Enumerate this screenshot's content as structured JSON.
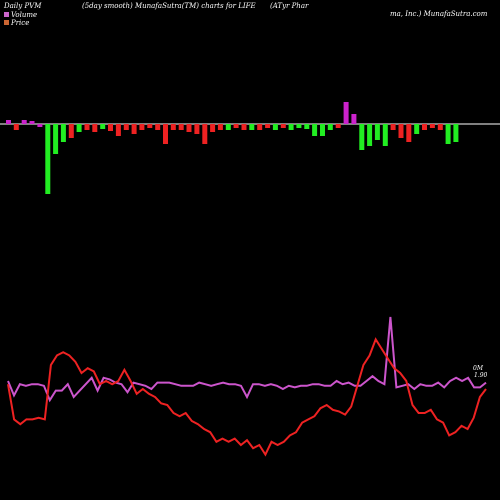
{
  "header": {
    "left": "Daily PVM",
    "center": "(5day smooth) MunafaSutra(TM) charts for LIFE",
    "right": "(ATyr Phar",
    "right2": "ma, Inc.) MunafaSutra.com"
  },
  "legend": [
    {
      "label": "Volume",
      "color": "#cc66cc"
    },
    {
      "label": "Price",
      "color": "#cc6633"
    }
  ],
  "labels": {
    "volume_end": "0M",
    "price_end": "1.90"
  },
  "colors": {
    "background": "#000000",
    "baseline": "#ffffff",
    "up": "#22ee22",
    "down": "#ee2222",
    "magenta": "#cc22cc",
    "volume_line": "#cc55cc",
    "price_line": "#ee2222"
  },
  "chart_data": {
    "type": "bar",
    "note_units": "volume bars are relative (0 = baseline, positive above, negative below)",
    "bars": [
      {
        "v": 4,
        "c": "magenta"
      },
      {
        "v": -6,
        "c": "down"
      },
      {
        "v": 4,
        "c": "magenta"
      },
      {
        "v": 3,
        "c": "magenta"
      },
      {
        "v": -3,
        "c": "magenta"
      },
      {
        "v": -70,
        "c": "up"
      },
      {
        "v": -30,
        "c": "up"
      },
      {
        "v": -18,
        "c": "up"
      },
      {
        "v": -14,
        "c": "down"
      },
      {
        "v": -8,
        "c": "up"
      },
      {
        "v": -6,
        "c": "down"
      },
      {
        "v": -8,
        "c": "down"
      },
      {
        "v": -5,
        "c": "up"
      },
      {
        "v": -7,
        "c": "down"
      },
      {
        "v": -12,
        "c": "down"
      },
      {
        "v": -6,
        "c": "down"
      },
      {
        "v": -10,
        "c": "down"
      },
      {
        "v": -6,
        "c": "down"
      },
      {
        "v": -4,
        "c": "down"
      },
      {
        "v": -6,
        "c": "down"
      },
      {
        "v": -20,
        "c": "down"
      },
      {
        "v": -6,
        "c": "down"
      },
      {
        "v": -6,
        "c": "down"
      },
      {
        "v": -8,
        "c": "down"
      },
      {
        "v": -10,
        "c": "down"
      },
      {
        "v": -20,
        "c": "down"
      },
      {
        "v": -8,
        "c": "down"
      },
      {
        "v": -6,
        "c": "down"
      },
      {
        "v": -6,
        "c": "up"
      },
      {
        "v": -4,
        "c": "down"
      },
      {
        "v": -6,
        "c": "down"
      },
      {
        "v": -6,
        "c": "up"
      },
      {
        "v": -6,
        "c": "down"
      },
      {
        "v": -4,
        "c": "down"
      },
      {
        "v": -6,
        "c": "up"
      },
      {
        "v": -4,
        "c": "down"
      },
      {
        "v": -6,
        "c": "up"
      },
      {
        "v": -4,
        "c": "up"
      },
      {
        "v": -5,
        "c": "up"
      },
      {
        "v": -12,
        "c": "up"
      },
      {
        "v": -12,
        "c": "up"
      },
      {
        "v": -6,
        "c": "up"
      },
      {
        "v": -4,
        "c": "down"
      },
      {
        "v": 22,
        "c": "magenta"
      },
      {
        "v": 10,
        "c": "magenta"
      },
      {
        "v": -26,
        "c": "up"
      },
      {
        "v": -22,
        "c": "up"
      },
      {
        "v": -16,
        "c": "up"
      },
      {
        "v": -22,
        "c": "up"
      },
      {
        "v": -6,
        "c": "down"
      },
      {
        "v": -14,
        "c": "down"
      },
      {
        "v": -18,
        "c": "down"
      },
      {
        "v": -10,
        "c": "up"
      },
      {
        "v": -6,
        "c": "down"
      },
      {
        "v": -4,
        "c": "down"
      },
      {
        "v": -6,
        "c": "down"
      },
      {
        "v": -20,
        "c": "up"
      },
      {
        "v": -18,
        "c": "up"
      }
    ],
    "volume_line": [
      60,
      69,
      62,
      63,
      62,
      62,
      63,
      72,
      66,
      66,
      62,
      70,
      66,
      62,
      58,
      66,
      58,
      59,
      61,
      62,
      67,
      61,
      62,
      63,
      65,
      61,
      61,
      61,
      62,
      63,
      63,
      63,
      61,
      62,
      63,
      62,
      61,
      62,
      62,
      63,
      70,
      62,
      62,
      63,
      62,
      63,
      65,
      63,
      64,
      63,
      63,
      62,
      62,
      63,
      63,
      60,
      62,
      61,
      63,
      63,
      60,
      57,
      60,
      62,
      20,
      64,
      63,
      62,
      65,
      62,
      63,
      63,
      61,
      64,
      60,
      58,
      60,
      58,
      64,
      64,
      61
    ],
    "price_line": [
      62,
      84,
      87,
      84,
      84,
      83,
      84,
      50,
      44,
      42,
      44,
      48,
      55,
      52,
      54,
      62,
      60,
      62,
      60,
      53,
      60,
      68,
      65,
      68,
      70,
      74,
      75,
      80,
      82,
      80,
      85,
      87,
      90,
      92,
      98,
      96,
      98,
      96,
      100,
      97,
      102,
      100,
      106,
      98,
      100,
      98,
      94,
      92,
      86,
      84,
      82,
      77,
      75,
      78,
      79,
      81,
      76,
      63,
      50,
      44,
      34,
      40,
      46,
      52,
      55,
      60,
      75,
      80,
      80,
      78,
      84,
      86,
      94,
      92,
      88,
      90,
      83,
      70,
      65
    ],
    "ylim": [
      0,
      100
    ]
  }
}
